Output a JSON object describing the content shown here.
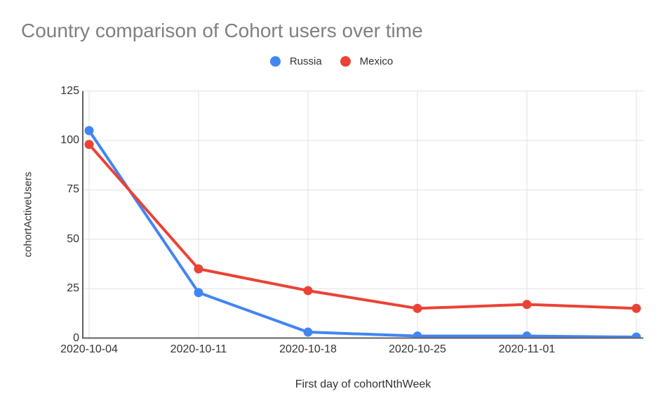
{
  "title": {
    "color": "#808080"
  },
  "chart_data": {
    "type": "line",
    "title": "Country comparison of Cohort users over time",
    "categories": [
      "2020-10-04",
      "2020-10-11",
      "2020-10-18",
      "2020-10-25",
      "2020-11-01",
      ""
    ],
    "series": [
      {
        "name": "Russia",
        "color": "#4285F4",
        "values": [
          105,
          23,
          3,
          1,
          1,
          0.5
        ]
      },
      {
        "name": "Mexico",
        "color": "#EA4335",
        "values": [
          98,
          35,
          24,
          15,
          17,
          15
        ]
      }
    ],
    "xlabel": "First day of cohortNthWeek",
    "ylabel": "cohortActiveUsers",
    "ylim": [
      0,
      125
    ],
    "y_ticks": [
      0,
      25,
      50,
      75,
      100,
      125
    ],
    "grid": true,
    "legend_position": "top-center",
    "grid_color": "#e0e0e0",
    "axis_color": "#616161",
    "tick_color": "#333333",
    "line_width": 4,
    "point_radius": 6.5
  }
}
